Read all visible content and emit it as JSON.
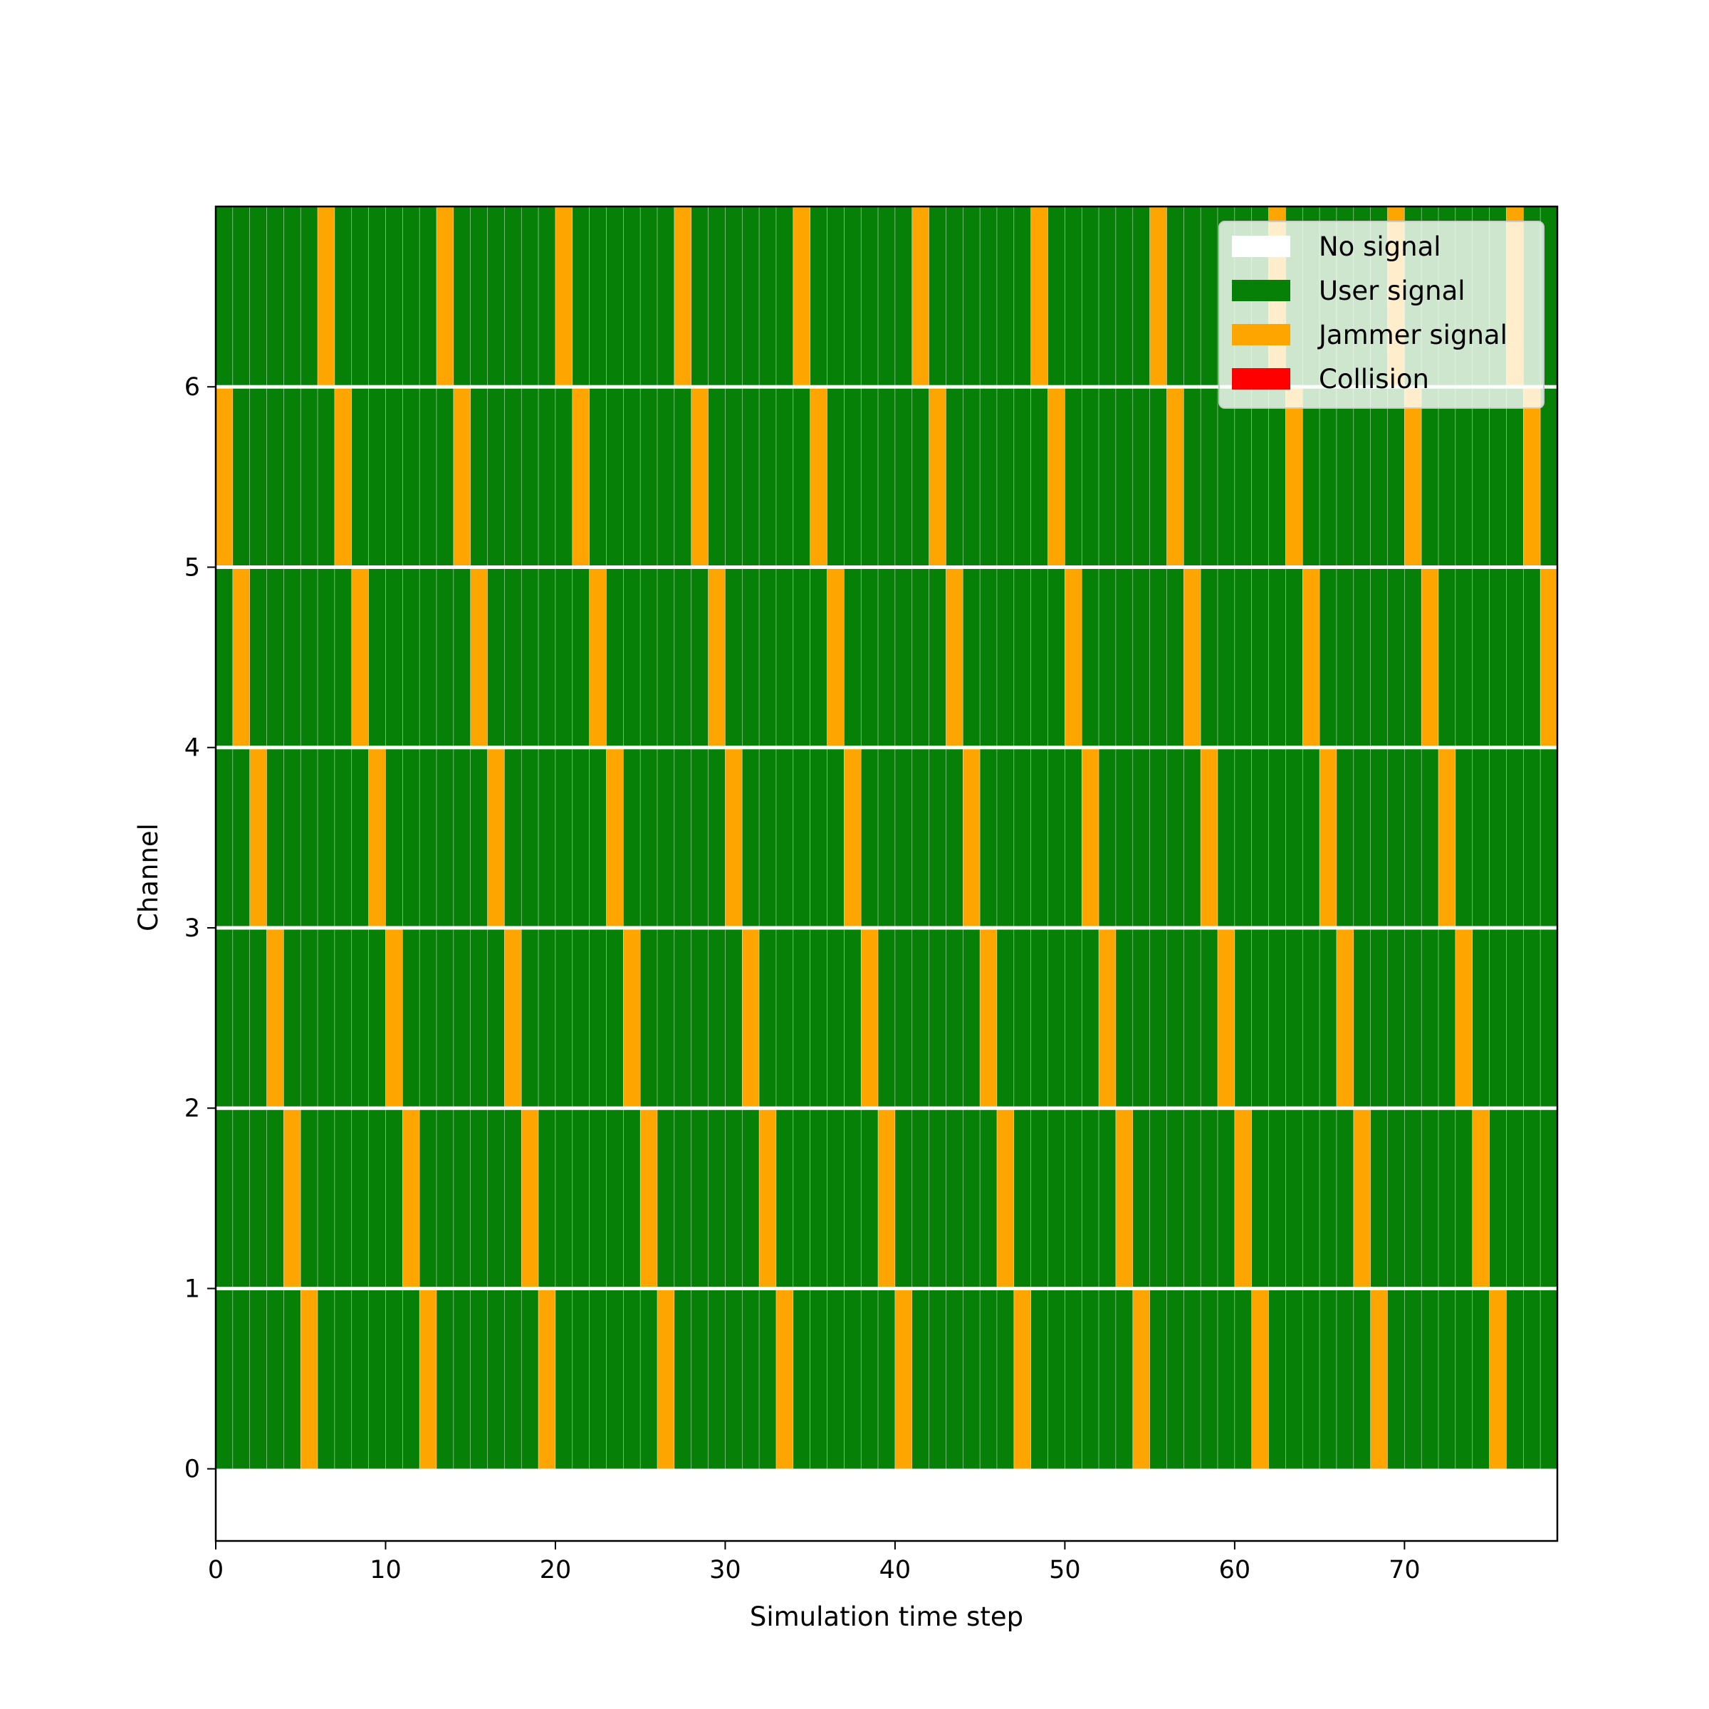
{
  "chart_data": {
    "type": "heatmap",
    "title": "",
    "xlabel": "Simulation time step",
    "ylabel": "Channel",
    "xlim": [
      0,
      79
    ],
    "ylim": [
      -0.4,
      7
    ],
    "xticks": [
      0,
      10,
      20,
      30,
      40,
      50,
      60,
      70
    ],
    "yticks": [
      0,
      1,
      2,
      3,
      4,
      5,
      6
    ],
    "num_time_steps": 79,
    "channels": [
      0,
      1,
      2,
      3,
      4,
      5,
      6
    ],
    "grid": false,
    "legend_position": "top-right",
    "colors": {
      "no_signal": "#ffffff",
      "user_signal": "#068006",
      "jammer_signal": "#ffa500",
      "collision": "#ff0000"
    },
    "legend": [
      {
        "label": "No signal",
        "color": "#ffffff"
      },
      {
        "label": "User signal",
        "color": "#068006"
      },
      {
        "label": "Jammer signal",
        "color": "#ffa500"
      },
      {
        "label": "Collision",
        "color": "#ff0000"
      }
    ],
    "jammer_steps": {
      "0": [
        5,
        12,
        19,
        26,
        33,
        40,
        47,
        54,
        61,
        68,
        75
      ],
      "1": [
        4,
        11,
        18,
        25,
        32,
        39,
        46,
        53,
        60,
        67,
        74
      ],
      "2": [
        3,
        10,
        17,
        24,
        31,
        38,
        45,
        52,
        59,
        66,
        73
      ],
      "3": [
        2,
        9,
        16,
        23,
        30,
        37,
        44,
        51,
        58,
        65,
        72
      ],
      "4": [
        1,
        8,
        15,
        22,
        29,
        36,
        43,
        50,
        57,
        64,
        71,
        78
      ],
      "5": [
        0,
        7,
        14,
        21,
        28,
        35,
        42,
        49,
        56,
        63,
        70,
        77
      ],
      "6": [
        6,
        13,
        20,
        27,
        34,
        41,
        48,
        55,
        62,
        69,
        76
      ]
    }
  }
}
